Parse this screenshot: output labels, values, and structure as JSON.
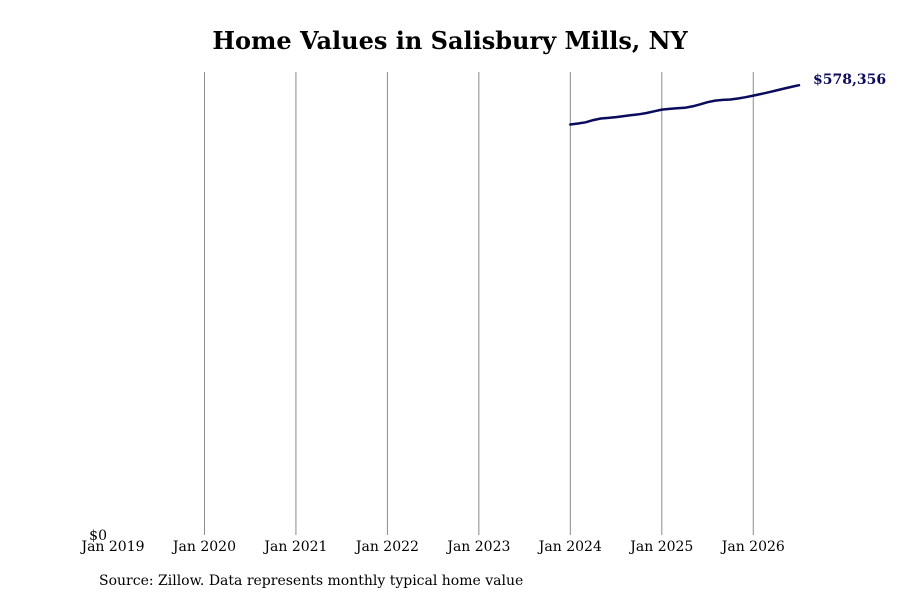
{
  "chart_data": {
    "type": "line",
    "title": "Home Values in Salisbury Mills, NY",
    "xlabel": "",
    "ylabel": "",
    "x_ticks": [
      "Jan 2019",
      "Jan 2020",
      "Jan 2021",
      "Jan 2022",
      "Jan 2023",
      "Jan 2024",
      "Jan 2025",
      "Jan 2026"
    ],
    "y_ticks": [
      "$0"
    ],
    "xlim": [
      "2019-01",
      "2026-07"
    ],
    "ylim": [
      0,
      578356
    ],
    "grid": "vertical lines at each January",
    "line_color": "#0b0b5e",
    "series": [
      {
        "name": "",
        "x": [
          "2024-01",
          "2024-02",
          "2024-03",
          "2024-04",
          "2024-05",
          "2024-06",
          "2024-07",
          "2024-08",
          "2024-09",
          "2024-10",
          "2024-11",
          "2024-12",
          "2025-01",
          "2025-02",
          "2025-03",
          "2025-04",
          "2025-05",
          "2025-06",
          "2025-07",
          "2025-08",
          "2025-09",
          "2025-10",
          "2025-11",
          "2025-12",
          "2026-01",
          "2026-02",
          "2026-03",
          "2026-04",
          "2026-05",
          "2026-06",
          "2026-07"
        ],
        "values": [
          515000,
          516200,
          517800,
          520500,
          522500,
          523300,
          524300,
          525600,
          526800,
          527800,
          529400,
          531500,
          533700,
          534600,
          535300,
          535900,
          537700,
          540200,
          543000,
          545000,
          545800,
          546400,
          547600,
          549300,
          551200,
          553300,
          555400,
          557600,
          560100,
          562200,
          564300
        ]
      }
    ],
    "end_label": "$578,356"
  },
  "footer": {
    "source": "Source: Zillow. Data represents monthly typical home value"
  }
}
